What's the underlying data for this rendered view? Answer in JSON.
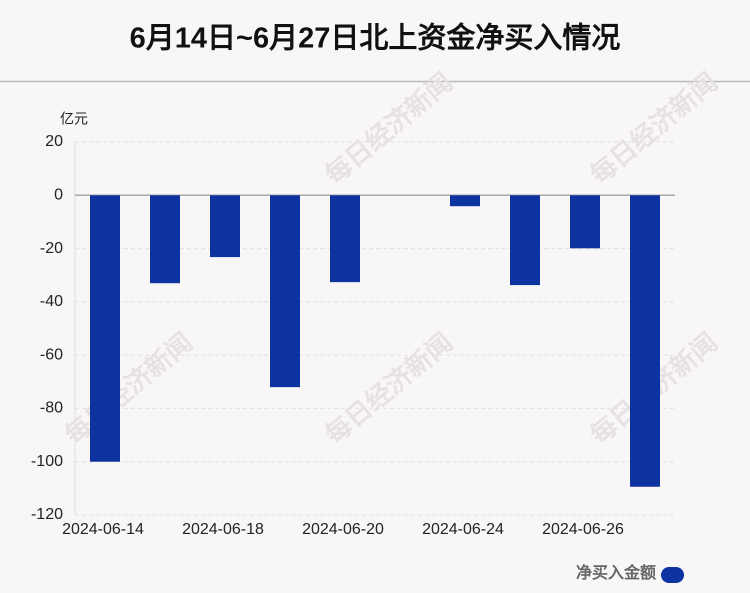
{
  "chart_data": {
    "type": "bar",
    "title": "6月14日~6月27日北上资金净买入情况",
    "y_unit": "亿元",
    "watermark": "每日经济新闻",
    "categories": [
      "2024-06-14",
      null,
      "2024-06-18",
      null,
      "2024-06-20",
      null,
      "2024-06-24",
      null,
      "2024-06-26",
      null
    ],
    "series": [
      {
        "name": "净买入金额",
        "color": "#0c33a0",
        "values": [
          -100,
          -33,
          -23.2,
          -72,
          -32.6,
          0,
          -4.1,
          -33.7,
          -19.9,
          -109.4
        ]
      }
    ],
    "ylim": [
      -120,
      20
    ],
    "yticks": [
      -120,
      -100,
      -80,
      -60,
      -40,
      -20,
      0,
      20
    ],
    "grid": true,
    "legend": "bottom-right"
  }
}
